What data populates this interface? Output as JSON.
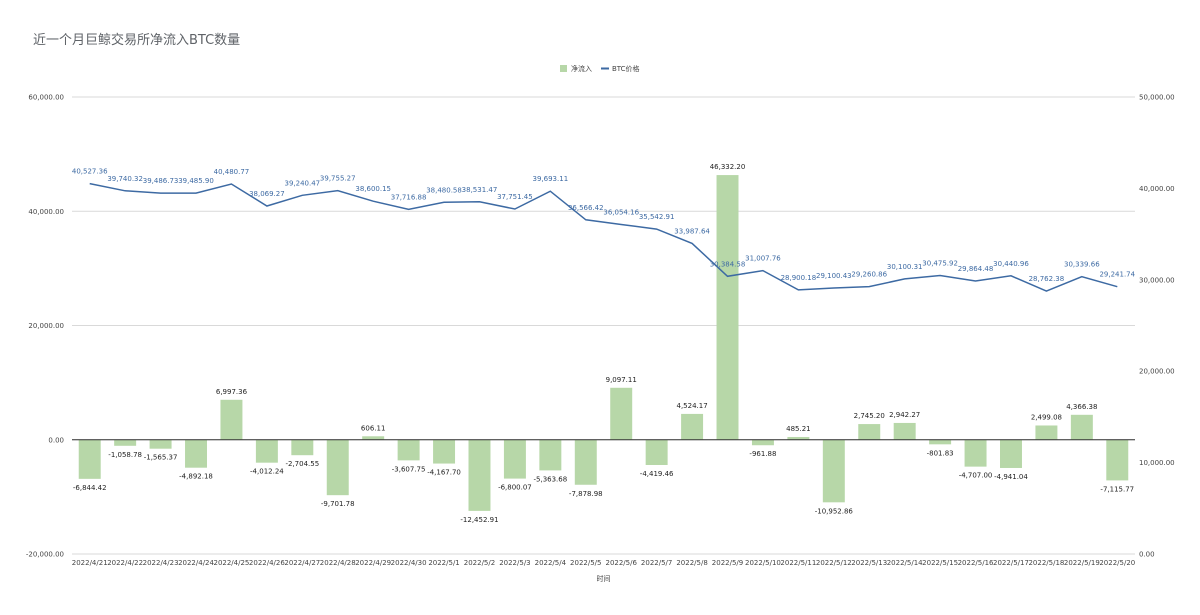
{
  "chart_data": {
    "type": "bar",
    "title": "近一个月巨鲸交易所净流入BTC数量",
    "xlabel": "时间",
    "legend": {
      "position": "top",
      "entries": [
        "净流入",
        "BTC价格"
      ]
    },
    "colors": {
      "bar": "#b7d7a8",
      "line": "#3d6aa3",
      "grid": "#d9d9d9",
      "zero_line": "#333333"
    },
    "y_left": {
      "range": [
        -20000,
        60000
      ],
      "ticks": [
        "-20,000.00",
        "0.00",
        "20,000.00",
        "40,000.00",
        "60,000.00"
      ],
      "tick_values": [
        -20000,
        0,
        20000,
        40000,
        60000
      ]
    },
    "y_right": {
      "range": [
        0,
        50000
      ],
      "ticks": [
        "0.00",
        "10,000.00",
        "20,000.00",
        "30,000.00",
        "40,000.00",
        "50,000.00"
      ],
      "tick_values": [
        0,
        10000,
        20000,
        30000,
        40000,
        50000
      ]
    },
    "categories": [
      "2022/4/21",
      "2022/4/22",
      "2022/4/23",
      "2022/4/24",
      "2022/4/25",
      "2022/4/26",
      "2022/4/27",
      "2022/4/28",
      "2022/4/29",
      "2022/4/30",
      "2022/5/1",
      "2022/5/2",
      "2022/5/3",
      "2022/5/4",
      "2022/5/5",
      "2022/5/6",
      "2022/5/7",
      "2022/5/8",
      "2022/5/9",
      "2022/5/10",
      "2022/5/11",
      "2022/5/12",
      "2022/5/13",
      "2022/5/14",
      "2022/5/15",
      "2022/5/16",
      "2022/5/17",
      "2022/5/18",
      "2022/5/19",
      "2022/5/20"
    ],
    "series": [
      {
        "name": "净流入",
        "type": "bar",
        "axis": "left",
        "values": [
          -6844.42,
          -1058.78,
          -1565.37,
          -4892.18,
          6997.36,
          -4012.24,
          -2704.55,
          -9701.78,
          606.11,
          -3607.75,
          -4167.7,
          -12452.91,
          -6800.07,
          -5363.68,
          -7878.98,
          9097.11,
          -4419.46,
          4524.17,
          46332.2,
          -961.88,
          485.21,
          -10952.86,
          2745.2,
          2942.27,
          -801.83,
          -4707.0,
          -4941.04,
          2499.08,
          4366.38,
          -7115.77
        ],
        "labels": [
          "-6,844.42",
          "-1,058.78",
          "-1,565.37",
          "-4,892.18",
          "6,997.36",
          "-4,012.24",
          "-2,704.55",
          "-9,701.78",
          "606.11",
          "-3,607.75",
          "-4,167.70",
          "-12,452.91",
          "-6,800.07",
          "-5,363.68",
          "-7,878.98",
          "9,097.11",
          "-4,419.46",
          "4,524.17",
          "46,332.20",
          "-961.88",
          "485.21",
          "-10,952.86",
          "2,745.20",
          "2,942.27",
          "-801.83",
          "-4,707.00",
          "-4,941.04",
          "2,499.08",
          "4,366.38",
          "-7,115.77"
        ]
      },
      {
        "name": "BTC价格",
        "type": "line",
        "axis": "right",
        "values": [
          40527.36,
          39740.32,
          39486.73,
          39485.9,
          40480.77,
          38069.27,
          39240.47,
          39755.27,
          38600.15,
          37716.88,
          38480.58,
          38531.47,
          37751.45,
          39693.11,
          36566.42,
          36054.16,
          35542.91,
          33987.64,
          30384.58,
          31007.76,
          28900.18,
          29100.43,
          29260.86,
          30100.31,
          30475.92,
          29864.48,
          30440.96,
          28762.38,
          30339.66,
          29241.74
        ],
        "labels": [
          "40,527.36",
          "39,740.32",
          "39,486.73",
          "39,485.90",
          "40,480.77",
          "38,069.27",
          "39,240.47",
          "39,755.27",
          "38,600.15",
          "37,716.88",
          "38,480.58",
          "38,531.47",
          "37,751.45",
          "39,693.11",
          "36,566.42",
          "36,054.16",
          "35,542.91",
          "33,987.64",
          "30,384.58",
          "31,007.76",
          "28,900.18",
          "29,100.43",
          "29,260.86",
          "30,100.31",
          "30,475.92",
          "29,864.48",
          "30,440.96",
          "28,762.38",
          "30,339.66",
          "29,241.74"
        ]
      }
    ]
  }
}
